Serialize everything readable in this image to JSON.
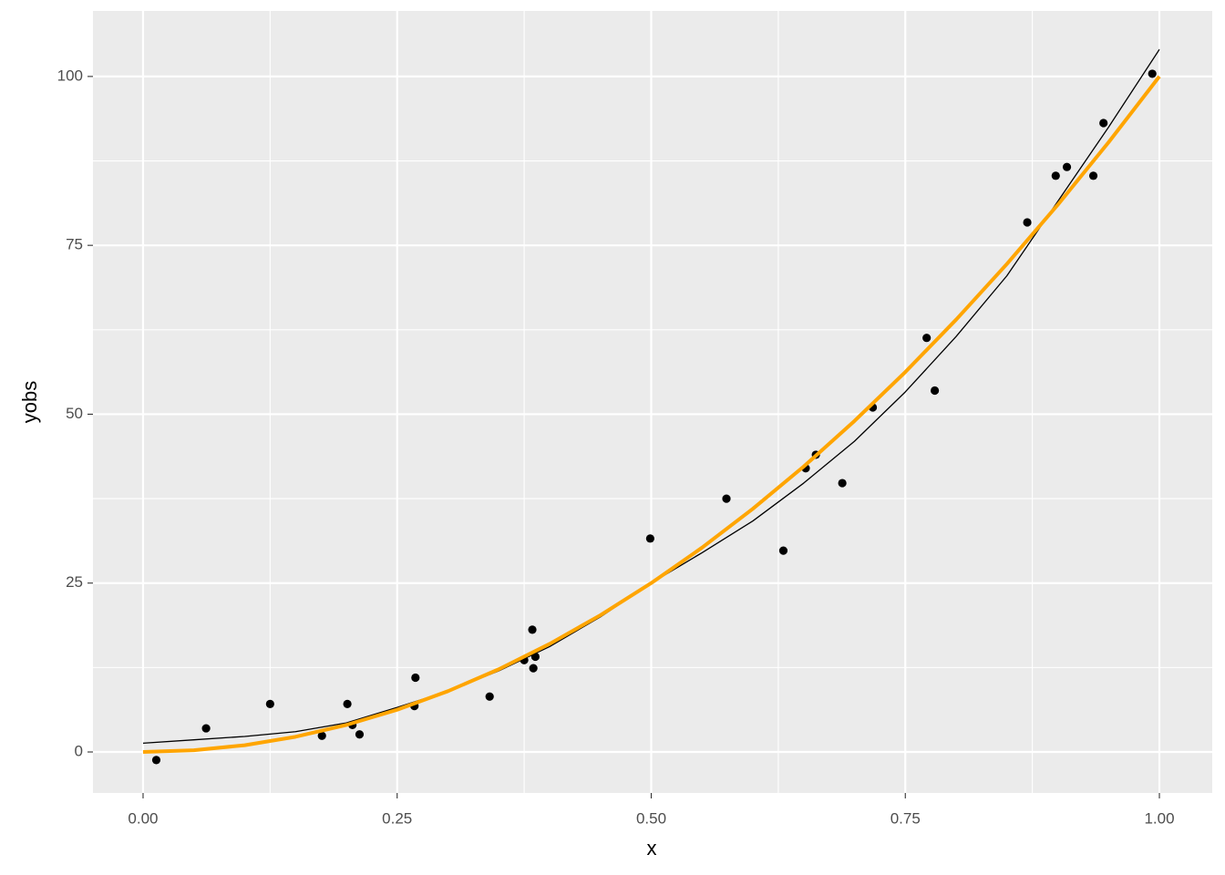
{
  "chart_data": {
    "type": "scatter",
    "x_label": "x",
    "y_label": "yobs",
    "xlim": [
      -0.0493,
      1.052
    ],
    "ylim": [
      -6.07,
      109.7
    ],
    "xticks": [
      {
        "value": 0,
        "label": "0.00"
      },
      {
        "value": 0.25,
        "label": "0.25"
      },
      {
        "value": 0.5,
        "label": "0.50"
      },
      {
        "value": 0.75,
        "label": "0.75"
      },
      {
        "value": 1,
        "label": "1.00"
      }
    ],
    "yticks": [
      0,
      25,
      50,
      75,
      100
    ],
    "grid": true,
    "panel_color": "#ebebeb",
    "series": [
      {
        "type": "scatter",
        "color": "#000000",
        "x": [
          0.013,
          0.062,
          0.125,
          0.176,
          0.201,
          0.206,
          0.213,
          0.267,
          0.268,
          0.341,
          0.375,
          0.383,
          0.384,
          0.386,
          0.499,
          0.574,
          0.63,
          0.652,
          0.662,
          0.688,
          0.718,
          0.771,
          0.779,
          0.87,
          0.898,
          0.909,
          0.935,
          0.945,
          0.993
        ],
        "values": [
          -1.2,
          3.5,
          7.1,
          2.4,
          7.1,
          4.0,
          2.6,
          6.8,
          11.0,
          8.2,
          13.6,
          18.1,
          12.4,
          14.1,
          31.6,
          37.5,
          29.8,
          42.0,
          44.0,
          39.8,
          51.0,
          61.3,
          53.5,
          78.4,
          85.3,
          86.6,
          85.3,
          93.1,
          100.4
        ]
      },
      {
        "type": "line",
        "color": "#000000",
        "width": 1.3,
        "x": [
          0,
          0.05,
          0.1,
          0.15,
          0.2,
          0.25,
          0.3,
          0.35,
          0.4,
          0.45,
          0.5,
          0.55,
          0.6,
          0.65,
          0.7,
          0.75,
          0.8,
          0.85,
          0.9,
          0.95,
          1.0
        ],
        "values": [
          1.3,
          1.8,
          2.3,
          3.0,
          4.3,
          6.6,
          9.0,
          12.0,
          15.6,
          20.0,
          25.0,
          29.5,
          34.2,
          39.8,
          46.0,
          53.3,
          61.5,
          70.5,
          81.5,
          92.5,
          104.0
        ]
      },
      {
        "type": "line",
        "color": "#FFA500",
        "width": 4,
        "x": [
          0,
          0.05,
          0.1,
          0.15,
          0.2,
          0.25,
          0.3,
          0.35,
          0.4,
          0.45,
          0.5,
          0.55,
          0.6,
          0.65,
          0.7,
          0.75,
          0.8,
          0.85,
          0.9,
          0.95,
          1.0
        ],
        "values": [
          0,
          0.25,
          1,
          2.25,
          4,
          6.25,
          9,
          12.25,
          16,
          20.25,
          25,
          30.25,
          36,
          42.25,
          49,
          56.25,
          64,
          72.25,
          81,
          90.25,
          100
        ]
      }
    ]
  }
}
